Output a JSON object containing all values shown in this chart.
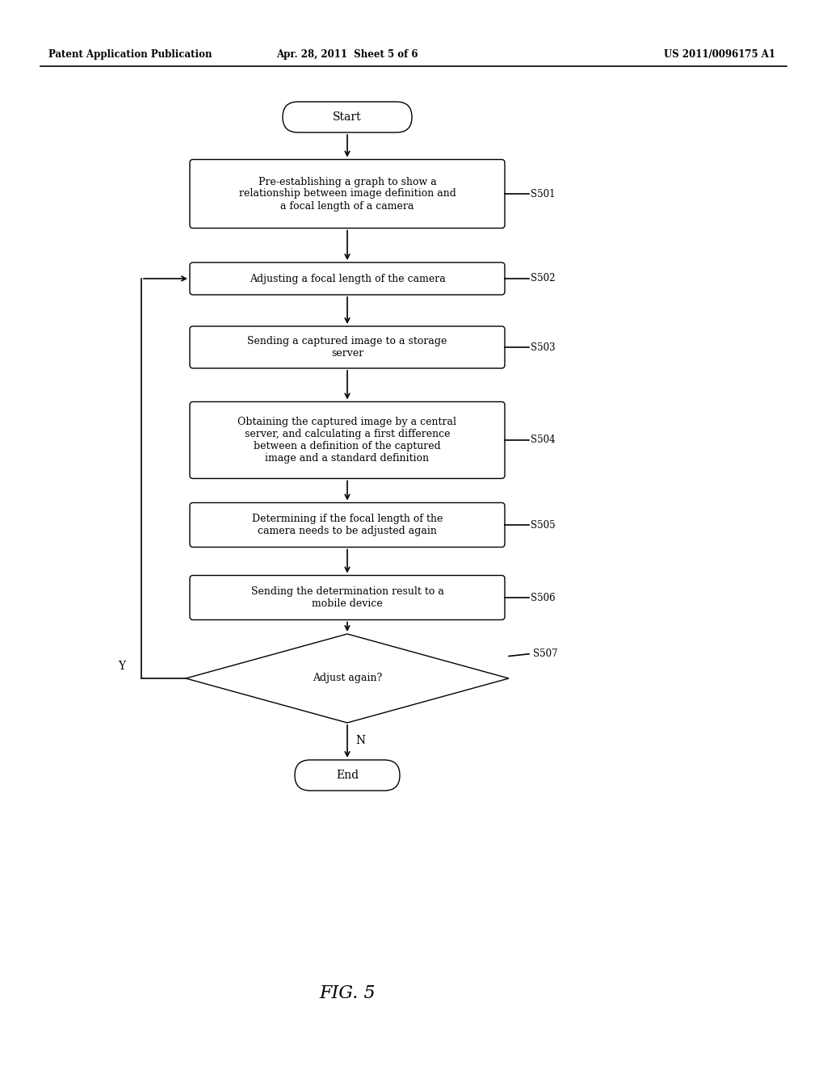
{
  "bg_color": "#ffffff",
  "text_color": "#000000",
  "header_left": "Patent Application Publication",
  "header_mid": "Apr. 28, 2011  Sheet 5 of 6",
  "header_right": "US 2011/0096175 A1",
  "fig_label": "FIG. 5",
  "start_label": "Start",
  "end_label": "End",
  "steps": [
    {
      "id": "S501",
      "text": "Pre-establishing a graph to show a\nrelationship between image definition and\na focal length of a camera"
    },
    {
      "id": "S502",
      "text": "Adjusting a focal length of the camera"
    },
    {
      "id": "S503",
      "text": "Sending a captured image to a storage\nserver"
    },
    {
      "id": "S504",
      "text": "Obtaining the captured image by a central\nserver, and calculating a first difference\nbetween a definition of the captured\nimage and a standard definition"
    },
    {
      "id": "S505",
      "text": "Determining if the focal length of the\ncamera needs to be adjusted again"
    },
    {
      "id": "S506",
      "text": "Sending the determination result to a\nmobile device"
    }
  ],
  "diamond": {
    "id": "S507",
    "text": "Adjust again?"
  },
  "yes_label": "Y",
  "no_label": "N",
  "header_font_size": 8.5,
  "body_font_size": 9,
  "label_font_size": 8.5,
  "fig_font_size": 16
}
